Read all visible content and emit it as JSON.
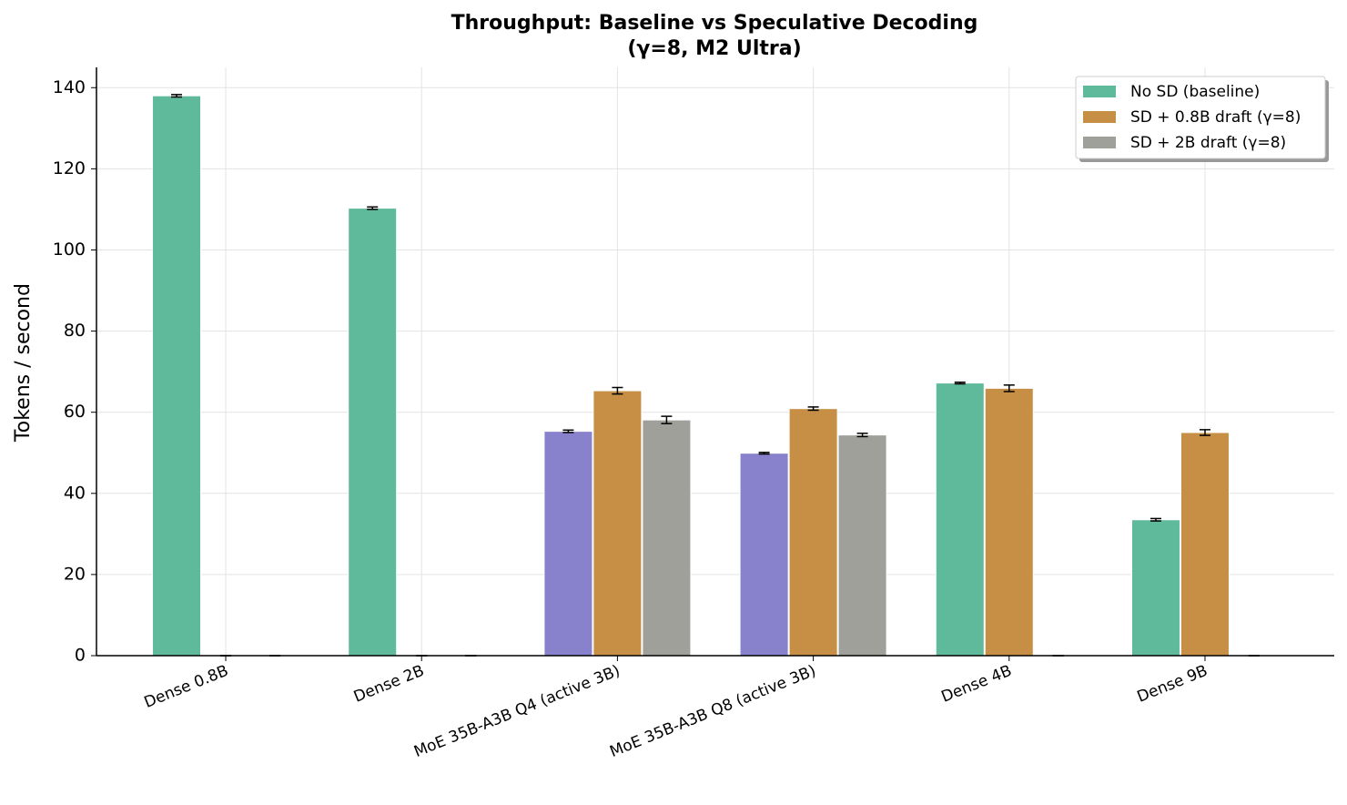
{
  "chart_data": {
    "type": "bar",
    "title": [
      "Throughput: Baseline vs Speculative Decoding",
      "(γ=8, M2 Ultra)"
    ],
    "y_label": "Tokens / second",
    "categories": [
      "Dense 0.8B",
      "Dense 2B",
      "MoE 35B-A3B Q4 (active 3B)",
      "MoE 35B-A3B Q8 (active 3B)",
      "Dense 4B",
      "Dense 9B"
    ],
    "series": [
      {
        "name": "No SD (baseline)",
        "color": "#5fba9c",
        "colors": [
          "#5fba9c",
          "#5fba9c",
          "#8882cc",
          "#8882cc",
          "#5fba9c",
          "#5fba9c"
        ],
        "values": [
          138,
          110.3,
          55.3,
          49.9,
          67.2,
          33.5
        ],
        "errors": [
          0.3,
          0.3,
          0.3,
          0.2,
          0.2,
          0.3
        ]
      },
      {
        "name": "SD + 0.8B draft (γ=8)",
        "color": "#c68f45",
        "values": [
          0,
          0,
          65.3,
          60.9,
          65.9,
          55
        ],
        "errors": [
          0,
          0,
          0.8,
          0.4,
          0.8,
          0.7
        ]
      },
      {
        "name": "SD + 2B draft (γ=8)",
        "color": "#a0a09a",
        "values": [
          0,
          0,
          58.1,
          54.4,
          0,
          0
        ],
        "errors": [
          0,
          0,
          0.9,
          0.4,
          0,
          0
        ]
      }
    ],
    "ylim": [
      0,
      145
    ],
    "yticks": [
      0,
      20,
      40,
      60,
      80,
      100,
      120,
      140
    ],
    "grid": true,
    "legend": "upper right"
  }
}
